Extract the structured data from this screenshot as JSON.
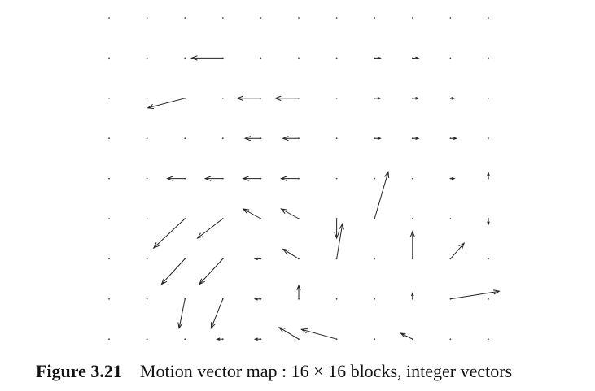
{
  "figure": {
    "label": "Figure 3.21",
    "caption": "Motion vector map : 16 × 16 blocks, integer vectors"
  },
  "grid": {
    "cols": 11,
    "rows": 9
  },
  "vectors": [
    {
      "col": 3,
      "row": 1,
      "dx": 1.6,
      "dy": 0.0
    },
    {
      "col": 7,
      "row": 1,
      "dx": -0.3,
      "dy": 0.0
    },
    {
      "col": 8,
      "row": 1,
      "dx": -0.3,
      "dy": 0.0
    },
    {
      "col": 2,
      "row": 2,
      "dx": 1.9,
      "dy": -0.5
    },
    {
      "col": 4,
      "row": 2,
      "dx": 1.2,
      "dy": 0.0
    },
    {
      "col": 5,
      "row": 2,
      "dx": 1.2,
      "dy": 0.0
    },
    {
      "col": 7,
      "row": 2,
      "dx": -0.3,
      "dy": 0.0
    },
    {
      "col": 8,
      "row": 2,
      "dx": -0.3,
      "dy": 0.0
    },
    {
      "col": 9,
      "row": 2,
      "dx": -0.2,
      "dy": 0.0
    },
    {
      "col": 4,
      "row": 3,
      "dx": 0.8,
      "dy": 0.0
    },
    {
      "col": 5,
      "row": 3,
      "dx": 0.8,
      "dy": 0.0
    },
    {
      "col": 7,
      "row": 3,
      "dx": -0.3,
      "dy": 0.0
    },
    {
      "col": 8,
      "row": 3,
      "dx": -0.3,
      "dy": 0.0
    },
    {
      "col": 9,
      "row": 3,
      "dx": -0.3,
      "dy": 0.0
    },
    {
      "col": 2,
      "row": 4,
      "dx": 0.9,
      "dy": 0.0
    },
    {
      "col": 3,
      "row": 4,
      "dx": 0.9,
      "dy": 0.0
    },
    {
      "col": 4,
      "row": 4,
      "dx": 0.9,
      "dy": 0.0
    },
    {
      "col": 5,
      "row": 4,
      "dx": 0.9,
      "dy": 0.0
    },
    {
      "col": 9,
      "row": 4,
      "dx": -0.2,
      "dy": 0.0
    },
    {
      "col": 10,
      "row": 4,
      "dx": 0.0,
      "dy": 0.3
    },
    {
      "col": 2,
      "row": 5,
      "dx": 1.6,
      "dy": -1.5
    },
    {
      "col": 3,
      "row": 5,
      "dx": 1.3,
      "dy": -1.0
    },
    {
      "col": 4,
      "row": 5,
      "dx": 0.9,
      "dy": 0.5
    },
    {
      "col": 5,
      "row": 5,
      "dx": 0.9,
      "dy": 0.5
    },
    {
      "col": 6,
      "row": 5,
      "dx": 0.0,
      "dy": -1.0
    },
    {
      "col": 7,
      "row": 5,
      "dx": -0.7,
      "dy": 2.4
    },
    {
      "col": 10,
      "row": 5,
      "dx": 0.0,
      "dy": -0.3
    },
    {
      "col": 2,
      "row": 6,
      "dx": 1.2,
      "dy": -1.3
    },
    {
      "col": 3,
      "row": 6,
      "dx": 1.2,
      "dy": -1.3
    },
    {
      "col": 4,
      "row": 6,
      "dx": 0.3,
      "dy": 0.0
    },
    {
      "col": 5,
      "row": 6,
      "dx": 0.8,
      "dy": 0.5
    },
    {
      "col": 6,
      "row": 6,
      "dx": -0.3,
      "dy": 1.8
    },
    {
      "col": 8,
      "row": 6,
      "dx": 0.0,
      "dy": 1.4
    },
    {
      "col": 9,
      "row": 6,
      "dx": -0.7,
      "dy": 0.8
    },
    {
      "col": 2,
      "row": 7,
      "dx": 0.3,
      "dy": -1.5
    },
    {
      "col": 3,
      "row": 7,
      "dx": 0.6,
      "dy": -1.5
    },
    {
      "col": 4,
      "row": 7,
      "dx": 0.3,
      "dy": 0.0
    },
    {
      "col": 5,
      "row": 7,
      "dx": 0.0,
      "dy": 0.7
    },
    {
      "col": 8,
      "row": 7,
      "dx": 0.0,
      "dy": 0.3
    },
    {
      "col": 9,
      "row": 7,
      "dx": -2.5,
      "dy": 0.4
    },
    {
      "col": 3,
      "row": 8,
      "dx": 0.3,
      "dy": 0.0
    },
    {
      "col": 4,
      "row": 8,
      "dx": 0.3,
      "dy": 0.0
    },
    {
      "col": 5,
      "row": 8,
      "dx": 1.0,
      "dy": 0.6
    },
    {
      "col": 6,
      "row": 8,
      "dx": 1.8,
      "dy": 0.5
    },
    {
      "col": 8,
      "row": 8,
      "dx": 0.6,
      "dy": 0.3
    }
  ],
  "colors": {
    "ink": "#222222",
    "dot": "#444444"
  }
}
